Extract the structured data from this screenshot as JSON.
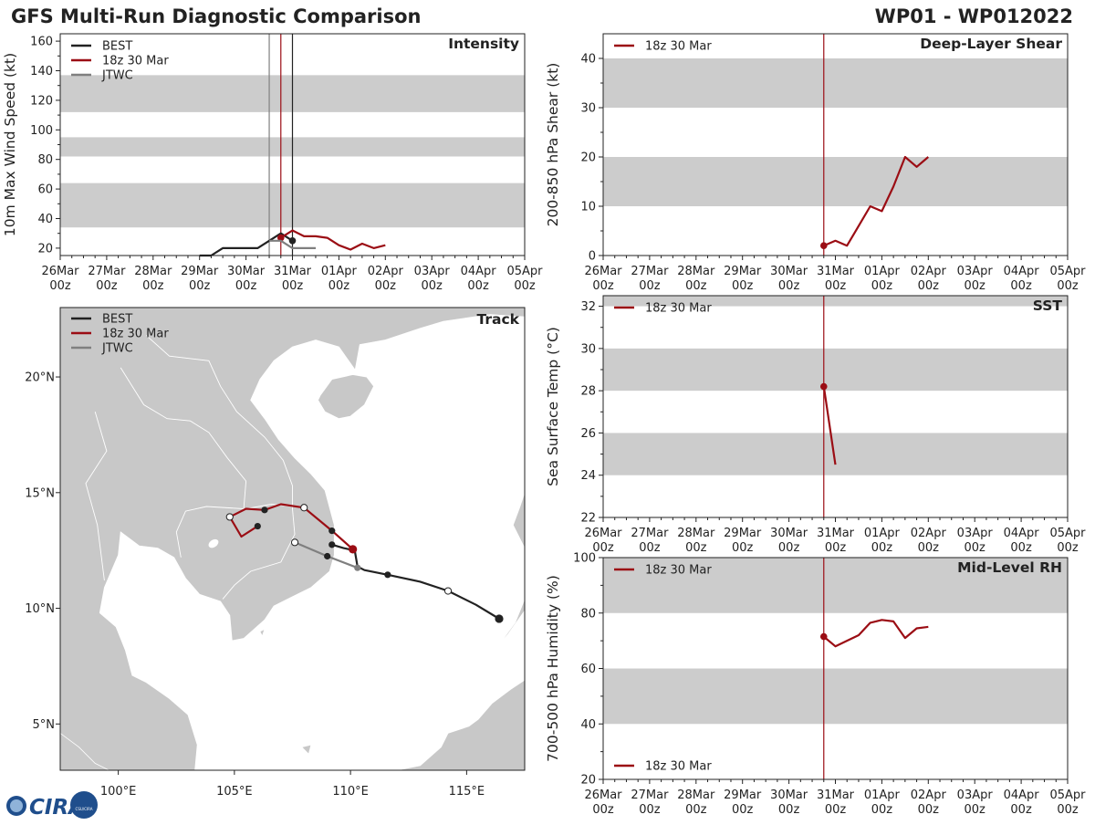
{
  "header": {
    "title": "GFS Multi-Run Diagnostic Comparison",
    "storm_id": "WP01 - WP012022"
  },
  "colors": {
    "best": "#222222",
    "run": "#9b0d14",
    "jtwc": "#7f7f7f",
    "band": "#cccccc",
    "land": "#c8c8c8",
    "land_edge": "#ffffff",
    "water": "#ffffff"
  },
  "time_axis": {
    "ticks": [
      [
        "26Mar",
        "00z"
      ],
      [
        "27Mar",
        "00z"
      ],
      [
        "28Mar",
        "00z"
      ],
      [
        "29Mar",
        "00z"
      ],
      [
        "30Mar",
        "00z"
      ],
      [
        "31Mar",
        "00z"
      ],
      [
        "01Apr",
        "00z"
      ],
      [
        "02Apr",
        "00z"
      ],
      [
        "03Apr",
        "00z"
      ],
      [
        "04Apr",
        "00z"
      ],
      [
        "05Apr",
        "00z"
      ]
    ],
    "range_days": [
      0,
      10
    ],
    "init_day": 4.75
  },
  "chart_data": [
    {
      "id": "intensity",
      "type": "line",
      "title": "Intensity",
      "ylabel": "10m Max Wind Speed (kt)",
      "ylim": [
        15,
        165
      ],
      "yticks": [
        20,
        40,
        60,
        80,
        100,
        120,
        140,
        160
      ],
      "bands": [
        [
          34,
          64
        ],
        [
          82,
          95
        ],
        [
          112,
          137
        ]
      ],
      "vlines": [
        {
          "x": 4.5,
          "color_key": "jtwc"
        },
        {
          "x": 4.75,
          "color_key": "run"
        },
        {
          "x": 5.0,
          "color_key": "best"
        }
      ],
      "legend": [
        {
          "label": "BEST",
          "color_key": "best"
        },
        {
          "label": "18z 30 Mar",
          "color_key": "run"
        },
        {
          "label": "JTWC",
          "color_key": "jtwc"
        }
      ],
      "series": [
        {
          "name": "BEST",
          "color_key": "best",
          "x": [
            3.0,
            3.25,
            3.5,
            3.75,
            4.0,
            4.25,
            4.5,
            4.75,
            5.0
          ],
          "y": [
            15,
            15,
            20,
            20,
            20,
            20,
            25,
            30,
            25
          ],
          "markers": [
            {
              "x": 5.0,
              "y": 25,
              "fill": "best"
            }
          ]
        },
        {
          "name": "18z 30 Mar",
          "color_key": "run",
          "x": [
            4.75,
            5.0,
            5.25,
            5.5,
            5.75,
            6.0,
            6.25,
            6.5,
            6.75,
            7.0
          ],
          "y": [
            27,
            32,
            28,
            28,
            27,
            22,
            19,
            23,
            20,
            22
          ],
          "markers": [
            {
              "x": 4.75,
              "y": 27,
              "fill": "run"
            }
          ]
        },
        {
          "name": "JTWC",
          "color_key": "jtwc",
          "x": [
            4.5,
            4.75,
            5.0,
            5.25,
            5.5
          ],
          "y": [
            25,
            25,
            20,
            20,
            20
          ],
          "markers": []
        }
      ]
    },
    {
      "id": "shear",
      "type": "line",
      "title": "Deep-Layer Shear",
      "ylabel": "200-850 hPa Shear (kt)",
      "ylim": [
        0,
        45
      ],
      "yticks": [
        0,
        10,
        20,
        30,
        40
      ],
      "bands": [
        [
          10,
          20
        ],
        [
          30,
          40
        ]
      ],
      "vlines": [
        {
          "x": 4.75,
          "color_key": "run"
        }
      ],
      "legend": [
        {
          "label": "18z 30 Mar",
          "color_key": "run"
        }
      ],
      "series": [
        {
          "name": "18z 30 Mar",
          "color_key": "run",
          "x": [
            4.75,
            5.0,
            5.25,
            5.5,
            5.75,
            6.0,
            6.25,
            6.5,
            6.75,
            7.0
          ],
          "y": [
            2,
            3,
            2,
            6,
            10,
            9,
            14,
            20,
            18,
            20
          ],
          "markers": [
            {
              "x": 4.75,
              "y": 2,
              "fill": "run"
            }
          ]
        }
      ]
    },
    {
      "id": "sst",
      "type": "line",
      "title": "SST",
      "ylabel": "Sea Surface Temp (°C)",
      "ylim": [
        22,
        32.5
      ],
      "yticks": [
        22,
        24,
        26,
        28,
        30,
        32
      ],
      "bands": [
        [
          24,
          26
        ],
        [
          28,
          30
        ],
        [
          32,
          32.5
        ]
      ],
      "vlines": [
        {
          "x": 4.75,
          "color_key": "run"
        }
      ],
      "legend": [
        {
          "label": "18z 30 Mar",
          "color_key": "run"
        }
      ],
      "series": [
        {
          "name": "18z 30 Mar",
          "color_key": "run",
          "x": [
            4.75,
            5.0
          ],
          "y": [
            28.2,
            24.5
          ],
          "markers": [
            {
              "x": 4.75,
              "y": 28.2,
              "fill": "run"
            }
          ]
        }
      ]
    },
    {
      "id": "rh",
      "type": "line",
      "title": "Mid-Level RH",
      "ylabel": "700-500 hPa Humidity (%)",
      "ylim": [
        20,
        100
      ],
      "yticks": [
        20,
        40,
        60,
        80,
        100
      ],
      "bands": [
        [
          40,
          60
        ],
        [
          80,
          100
        ]
      ],
      "vlines": [
        {
          "x": 4.75,
          "color_key": "run"
        }
      ],
      "legend": [
        {
          "label": "18z 30 Mar",
          "color_key": "run"
        }
      ],
      "series": [
        {
          "name": "18z 30 Mar",
          "color_key": "run",
          "x": [
            4.75,
            5.0,
            5.25,
            5.5,
            5.75,
            6.0,
            6.25,
            6.5,
            6.75,
            7.0
          ],
          "y": [
            71.5,
            68,
            70,
            72,
            76.5,
            77.5,
            77,
            71,
            74.5,
            75
          ],
          "markers": [
            {
              "x": 4.75,
              "y": 71.5,
              "fill": "run"
            }
          ]
        }
      ]
    },
    {
      "id": "track",
      "type": "scatter",
      "title": "Track",
      "lon_range": [
        97.5,
        117.5
      ],
      "lat_range": [
        3.0,
        23.0
      ],
      "xticks": [
        {
          "v": 100,
          "label": "100°E"
        },
        {
          "v": 105,
          "label": "105°E"
        },
        {
          "v": 110,
          "label": "110°E"
        },
        {
          "v": 115,
          "label": "115°E"
        }
      ],
      "yticks": [
        {
          "v": 5,
          "label": "5°N"
        },
        {
          "v": 10,
          "label": "10°N"
        },
        {
          "v": 15,
          "label": "15°N"
        },
        {
          "v": 20,
          "label": "20°N"
        }
      ],
      "legend": [
        {
          "label": "BEST",
          "color_key": "best"
        },
        {
          "label": "18z 30 Mar",
          "color_key": "run"
        },
        {
          "label": "JTWC",
          "color_key": "jtwc"
        }
      ],
      "series": [
        {
          "name": "BEST",
          "color_key": "best",
          "lon": [
            116.4,
            115.4,
            114.2,
            113.0,
            111.6,
            110.6,
            110.3,
            110.2,
            110.2,
            109.7,
            109.2
          ],
          "lat": [
            9.55,
            10.15,
            10.75,
            11.15,
            11.45,
            11.65,
            11.8,
            12.4,
            12.5,
            12.6,
            12.75
          ],
          "markers": [
            {
              "lon": 116.4,
              "lat": 9.55,
              "fill": "best",
              "big": true
            },
            {
              "lon": 114.2,
              "lat": 10.75,
              "fill": "white"
            },
            {
              "lon": 111.6,
              "lat": 11.45,
              "fill": "best"
            },
            {
              "lon": 109.2,
              "lat": 12.75,
              "fill": "best"
            }
          ]
        },
        {
          "name": "18z 30 Mar",
          "color_key": "run",
          "lon": [
            110.1,
            109.2,
            108.0,
            107.0,
            106.3,
            105.5,
            104.8,
            105.3,
            106.0
          ],
          "lat": [
            12.55,
            13.35,
            14.35,
            14.5,
            14.25,
            14.3,
            13.95,
            13.1,
            13.55
          ],
          "markers": [
            {
              "lon": 110.1,
              "lat": 12.55,
              "fill": "run",
              "big": true
            },
            {
              "lon": 109.2,
              "lat": 13.35,
              "fill": "best"
            },
            {
              "lon": 108.0,
              "lat": 14.35,
              "fill": "white"
            },
            {
              "lon": 106.3,
              "lat": 14.25,
              "fill": "best"
            },
            {
              "lon": 104.8,
              "lat": 13.95,
              "fill": "white"
            },
            {
              "lon": 106.0,
              "lat": 13.55,
              "fill": "best"
            }
          ]
        },
        {
          "name": "JTWC",
          "color_key": "jtwc",
          "lon": [
            110.3,
            109.0,
            107.6
          ],
          "lat": [
            11.75,
            12.25,
            12.85
          ],
          "markers": [
            {
              "lon": 110.3,
              "lat": 11.75,
              "fill": "jtwc"
            },
            {
              "lon": 109.0,
              "lat": 12.25,
              "fill": "best"
            },
            {
              "lon": 107.6,
              "lat": 12.85,
              "fill": "white"
            }
          ]
        }
      ]
    }
  ],
  "logo": {
    "text": "CIRA",
    "subtext": "CSU/CIRA"
  }
}
